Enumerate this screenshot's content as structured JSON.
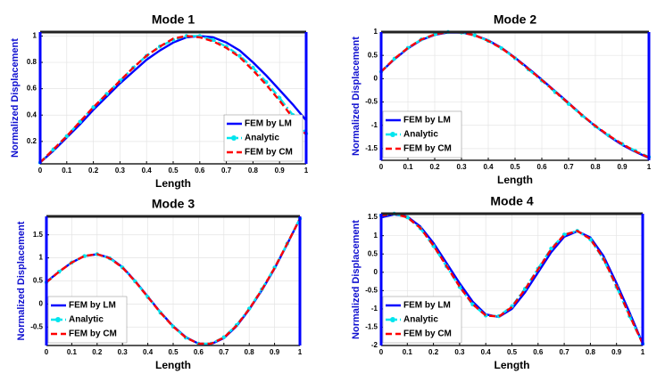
{
  "chart_data": [
    {
      "type": "line",
      "title": "Mode 1",
      "x_label": "Length",
      "y_label": "Normalized Displacement",
      "x": [
        0,
        0.05,
        0.1,
        0.15,
        0.2,
        0.25,
        0.3,
        0.35,
        0.4,
        0.45,
        0.5,
        0.55,
        0.6,
        0.65,
        0.7,
        0.75,
        0.8,
        0.85,
        0.9,
        0.95,
        1
      ],
      "xlim": [
        0,
        1
      ],
      "xticks": [
        0,
        0.1,
        0.2,
        0.3,
        0.4,
        0.5,
        0.6,
        0.7,
        0.8,
        0.9,
        1
      ],
      "ylim": [
        0.03,
        1.03
      ],
      "yticks": [
        0.2,
        0.4,
        0.6,
        0.8,
        1
      ],
      "grid": true,
      "legend": "lower right",
      "series": [
        {
          "name": "FEM by LM",
          "color": "#0000ff",
          "linestyle": "solid",
          "values": [
            0.04,
            0.13,
            0.23,
            0.33,
            0.44,
            0.54,
            0.64,
            0.73,
            0.82,
            0.89,
            0.95,
            0.99,
            1.0,
            0.99,
            0.95,
            0.89,
            0.8,
            0.7,
            0.59,
            0.48,
            0.36
          ]
        },
        {
          "name": "Analytic",
          "color": "#00e5ee",
          "linestyle": "dashdot",
          "marker": true,
          "values": [
            0.04,
            0.14,
            0.24,
            0.35,
            0.46,
            0.56,
            0.66,
            0.76,
            0.85,
            0.92,
            0.97,
            1.0,
            1.0,
            0.97,
            0.92,
            0.85,
            0.76,
            0.65,
            0.53,
            0.4,
            0.26
          ]
        },
        {
          "name": "FEM by CM",
          "color": "#ff0000",
          "linestyle": "dashed",
          "values": [
            0.04,
            0.14,
            0.24,
            0.35,
            0.46,
            0.56,
            0.66,
            0.76,
            0.85,
            0.92,
            0.98,
            1.0,
            0.99,
            0.96,
            0.91,
            0.84,
            0.74,
            0.63,
            0.51,
            0.38,
            0.25
          ]
        }
      ]
    },
    {
      "type": "line",
      "title": "Mode 2",
      "x_label": "Length",
      "y_label": "Normalized Displacement",
      "x": [
        0,
        0.05,
        0.1,
        0.15,
        0.2,
        0.25,
        0.3,
        0.35,
        0.4,
        0.45,
        0.5,
        0.55,
        0.6,
        0.65,
        0.7,
        0.75,
        0.8,
        0.85,
        0.9,
        0.95,
        1
      ],
      "xlim": [
        0,
        1
      ],
      "xticks": [
        0,
        0.1,
        0.2,
        0.3,
        0.4,
        0.5,
        0.6,
        0.7,
        0.8,
        0.9,
        1
      ],
      "ylim": [
        -1.75,
        1
      ],
      "yticks": [
        -1.5,
        -1,
        -0.5,
        0,
        0.5,
        1
      ],
      "grid": true,
      "legend": "lower left",
      "series": [
        {
          "name": "FEM by LM",
          "color": "#0000ff",
          "linestyle": "solid",
          "values": [
            0.15,
            0.42,
            0.65,
            0.83,
            0.94,
            0.99,
            0.99,
            0.93,
            0.82,
            0.66,
            0.45,
            0.22,
            -0.02,
            -0.27,
            -0.52,
            -0.78,
            -1.02,
            -1.23,
            -1.42,
            -1.57,
            -1.7
          ]
        },
        {
          "name": "Analytic",
          "color": "#00e5ee",
          "linestyle": "dashdot",
          "marker": true,
          "values": [
            0.15,
            0.43,
            0.66,
            0.84,
            0.95,
            1.0,
            0.99,
            0.93,
            0.81,
            0.65,
            0.44,
            0.2,
            -0.04,
            -0.29,
            -0.54,
            -0.79,
            -1.02,
            -1.22,
            -1.4,
            -1.55,
            -1.68
          ]
        },
        {
          "name": "FEM by CM",
          "color": "#ff0000",
          "linestyle": "dashed",
          "values": [
            0.15,
            0.43,
            0.66,
            0.84,
            0.95,
            1.0,
            0.99,
            0.93,
            0.81,
            0.65,
            0.44,
            0.21,
            -0.03,
            -0.28,
            -0.53,
            -0.78,
            -1.01,
            -1.22,
            -1.4,
            -1.56,
            -1.69
          ]
        }
      ]
    },
    {
      "type": "line",
      "title": "Mode 3",
      "x_label": "Length",
      "y_label": "Normalized Displacement",
      "x": [
        0,
        0.05,
        0.1,
        0.15,
        0.2,
        0.25,
        0.3,
        0.35,
        0.4,
        0.45,
        0.5,
        0.55,
        0.6,
        0.65,
        0.7,
        0.75,
        0.8,
        0.85,
        0.9,
        0.95,
        1
      ],
      "xlim": [
        0,
        1
      ],
      "xticks": [
        0,
        0.1,
        0.2,
        0.3,
        0.4,
        0.5,
        0.6,
        0.7,
        0.8,
        0.9,
        1
      ],
      "ylim": [
        -0.9,
        1.9
      ],
      "yticks": [
        -0.5,
        0,
        0.5,
        1,
        1.5
      ],
      "grid": true,
      "legend": "lower left",
      "series": [
        {
          "name": "FEM by LM",
          "color": "#0000ff",
          "linestyle": "solid",
          "values": [
            0.48,
            0.7,
            0.9,
            1.04,
            1.08,
            1.0,
            0.8,
            0.5,
            0.16,
            -0.18,
            -0.48,
            -0.72,
            -0.86,
            -0.87,
            -0.74,
            -0.48,
            -0.12,
            0.3,
            0.77,
            1.3,
            1.85
          ]
        },
        {
          "name": "Analytic",
          "color": "#00e5ee",
          "linestyle": "dashdot",
          "marker": true,
          "values": [
            0.47,
            0.7,
            0.9,
            1.04,
            1.08,
            0.99,
            0.79,
            0.49,
            0.15,
            -0.19,
            -0.49,
            -0.73,
            -0.86,
            -0.86,
            -0.72,
            -0.46,
            -0.1,
            0.32,
            0.79,
            1.31,
            1.85
          ]
        },
        {
          "name": "FEM by CM",
          "color": "#ff0000",
          "linestyle": "dashed",
          "values": [
            0.47,
            0.7,
            0.9,
            1.04,
            1.08,
            0.99,
            0.79,
            0.49,
            0.15,
            -0.19,
            -0.49,
            -0.73,
            -0.86,
            -0.86,
            -0.73,
            -0.47,
            -0.11,
            0.31,
            0.78,
            1.31,
            1.85
          ]
        }
      ]
    },
    {
      "type": "line",
      "title": "Mode 4",
      "x_label": "Length",
      "y_label": "Normalized Displacement",
      "x": [
        0,
        0.05,
        0.1,
        0.15,
        0.2,
        0.25,
        0.3,
        0.35,
        0.4,
        0.45,
        0.5,
        0.55,
        0.6,
        0.65,
        0.7,
        0.75,
        0.8,
        0.85,
        0.9,
        0.95,
        1
      ],
      "xlim": [
        0,
        1
      ],
      "xticks": [
        0,
        0.1,
        0.2,
        0.3,
        0.4,
        0.5,
        0.6,
        0.7,
        0.8,
        0.9,
        1
      ],
      "ylim": [
        -2,
        1.6
      ],
      "yticks": [
        -2,
        -1.5,
        -1,
        -0.5,
        0,
        0.5,
        1,
        1.5
      ],
      "grid": true,
      "legend": "lower left",
      "series": [
        {
          "name": "FEM by LM",
          "color": "#0000ff",
          "linestyle": "solid",
          "values": [
            1.5,
            1.58,
            1.52,
            1.25,
            0.8,
            0.25,
            -0.3,
            -0.8,
            -1.15,
            -1.22,
            -1.0,
            -0.55,
            0.0,
            0.55,
            0.97,
            1.12,
            0.95,
            0.45,
            -0.3,
            -1.1,
            -1.95
          ]
        },
        {
          "name": "Analytic",
          "color": "#00e5ee",
          "linestyle": "dashdot",
          "marker": true,
          "values": [
            1.55,
            1.6,
            1.5,
            1.2,
            0.72,
            0.16,
            -0.4,
            -0.88,
            -1.18,
            -1.2,
            -0.93,
            -0.45,
            0.1,
            0.65,
            1.03,
            1.13,
            0.9,
            0.36,
            -0.4,
            -1.2,
            -1.95
          ]
        },
        {
          "name": "FEM by CM",
          "color": "#ff0000",
          "linestyle": "dashed",
          "values": [
            1.55,
            1.6,
            1.5,
            1.21,
            0.73,
            0.17,
            -0.39,
            -0.87,
            -1.18,
            -1.21,
            -0.95,
            -0.47,
            0.08,
            0.63,
            1.02,
            1.13,
            0.91,
            0.38,
            -0.38,
            -1.18,
            -1.95
          ]
        }
      ]
    }
  ]
}
